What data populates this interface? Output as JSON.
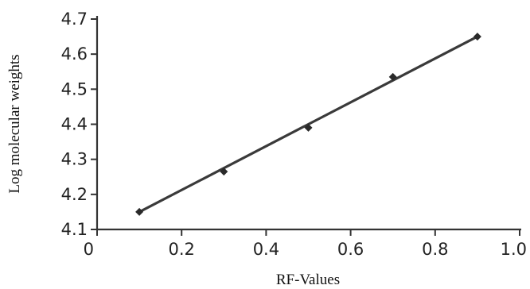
{
  "chart_data": {
    "type": "scatter",
    "title": "",
    "xlabel": "RF-Values",
    "ylabel": "Log molecular weights",
    "xlim": [
      0,
      1.0
    ],
    "ylim": [
      4.1,
      4.7
    ],
    "x_ticks": [
      0,
      0.2,
      0.4,
      0.6,
      0.8,
      1.0
    ],
    "x_tick_labels": [
      "0",
      "0.2",
      "0.4",
      "0.6",
      "0.8",
      "1.0"
    ],
    "y_ticks": [
      4.1,
      4.2,
      4.3,
      4.4,
      4.5,
      4.6,
      4.7
    ],
    "y_tick_labels": [
      "4.1",
      "4.2",
      "4.3",
      "4.4",
      "4.5",
      "4.6",
      "4.7"
    ],
    "grid": false,
    "series": [
      {
        "points": [
          {
            "x": 0.1,
            "y": 4.15
          },
          {
            "x": 0.3,
            "y": 4.265
          },
          {
            "x": 0.5,
            "y": 4.39
          },
          {
            "x": 0.7,
            "y": 4.535
          },
          {
            "x": 0.9,
            "y": 4.65
          }
        ],
        "trendline": {
          "type": "linear",
          "x_range": [
            0.1,
            0.9
          ],
          "y_range": [
            4.15,
            4.65
          ]
        }
      }
    ],
    "colors": {
      "marker": "#2a2a2a",
      "line": "#3a3a3a",
      "axis": "#333333"
    }
  }
}
